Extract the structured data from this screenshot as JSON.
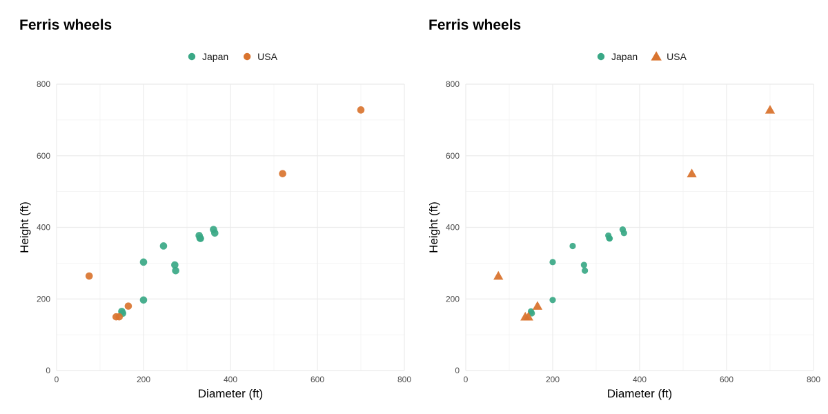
{
  "chart_data": [
    {
      "type": "scatter",
      "title": "Ferris wheels",
      "xlabel": "Diameter (ft)",
      "ylabel": "Height (ft)",
      "xlim": [
        0,
        800
      ],
      "ylim": [
        0,
        800
      ],
      "xticks": [
        0,
        200,
        400,
        600,
        800
      ],
      "yticks": [
        0,
        200,
        400,
        600,
        800
      ],
      "grid": true,
      "legend_position": "top",
      "series": [
        {
          "name": "Japan",
          "color": "#3aa886",
          "marker": "circle",
          "points": [
            [
              150,
              165
            ],
            [
              152,
              160
            ],
            [
              200,
              303
            ],
            [
              200,
              197
            ],
            [
              246,
              348
            ],
            [
              272,
              295
            ],
            [
              274,
              279
            ],
            [
              328,
              377
            ],
            [
              330,
              370
            ],
            [
              331,
              369
            ],
            [
              361,
              394
            ],
            [
              364,
              384
            ]
          ]
        },
        {
          "name": "USA",
          "color": "#d9742f",
          "marker": "circle",
          "points": [
            [
              75,
              264
            ],
            [
              137,
              150
            ],
            [
              144,
              150
            ],
            [
              165,
              180
            ],
            [
              520,
              550
            ],
            [
              700,
              728
            ]
          ]
        }
      ]
    },
    {
      "type": "scatter",
      "title": "Ferris wheels",
      "xlabel": "Diameter (ft)",
      "ylabel": "Height (ft)",
      "xlim": [
        0,
        800
      ],
      "ylim": [
        0,
        800
      ],
      "xticks": [
        0,
        200,
        400,
        600,
        800
      ],
      "yticks": [
        0,
        200,
        400,
        600,
        800
      ],
      "grid": true,
      "legend_position": "top",
      "series": [
        {
          "name": "Japan",
          "color": "#3aa886",
          "marker": "circle",
          "points": [
            [
              150,
              165
            ],
            [
              152,
              160
            ],
            [
              200,
              303
            ],
            [
              200,
              197
            ],
            [
              246,
              348
            ],
            [
              272,
              295
            ],
            [
              274,
              279
            ],
            [
              328,
              377
            ],
            [
              330,
              370
            ],
            [
              331,
              369
            ],
            [
              361,
              394
            ],
            [
              364,
              384
            ]
          ]
        },
        {
          "name": "USA",
          "color": "#d9742f",
          "marker": "triangle",
          "points": [
            [
              75,
              264
            ],
            [
              137,
              150
            ],
            [
              144,
              150
            ],
            [
              165,
              180
            ],
            [
              520,
              550
            ],
            [
              700,
              728
            ]
          ]
        }
      ]
    }
  ]
}
